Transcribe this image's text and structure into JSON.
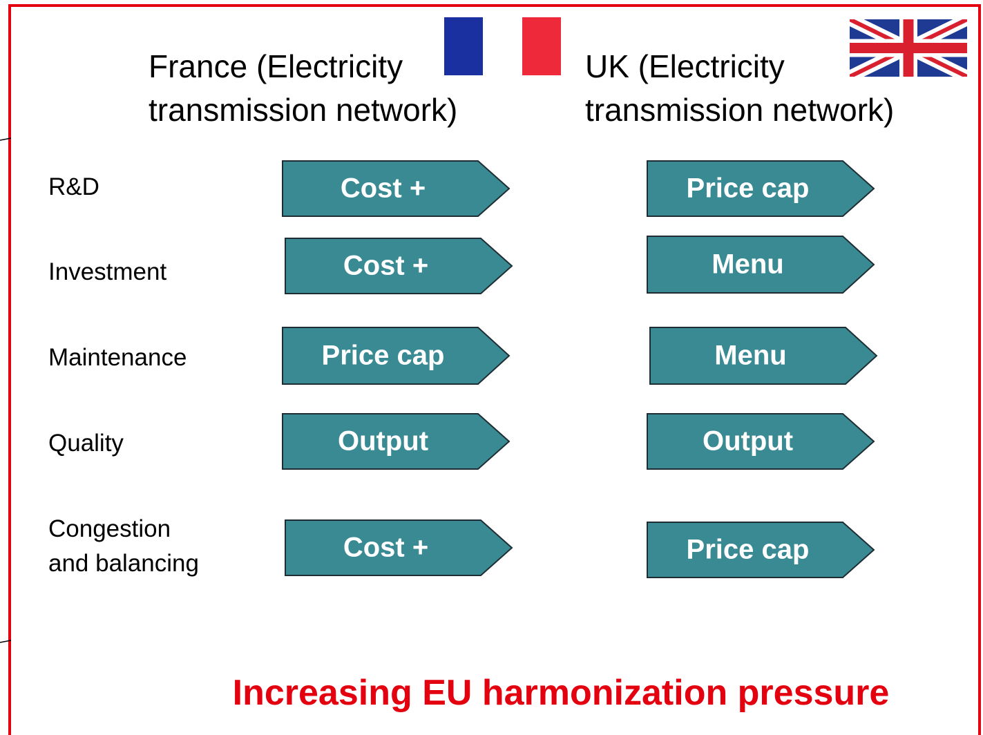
{
  "columns": [
    {
      "lines": [
        "France (Electricity",
        "transmission network)"
      ]
    },
    {
      "lines": [
        "UK (Electricity",
        "transmission network)"
      ]
    }
  ],
  "rows": [
    {
      "label": [
        "R&D"
      ],
      "france": "Cost +",
      "uk": "Price cap"
    },
    {
      "label": [
        "Investment"
      ],
      "france": "Cost +",
      "uk": "Menu"
    },
    {
      "label": [
        "Maintenance"
      ],
      "france": "Price cap",
      "uk": "Menu"
    },
    {
      "label": [
        "Quality"
      ],
      "france": "Output",
      "uk": "Output"
    },
    {
      "label": [
        "Congestion",
        "and balancing"
      ],
      "france": "Cost +",
      "uk": "Price cap"
    }
  ],
  "footer": "Increasing EU harmonization pressure"
}
